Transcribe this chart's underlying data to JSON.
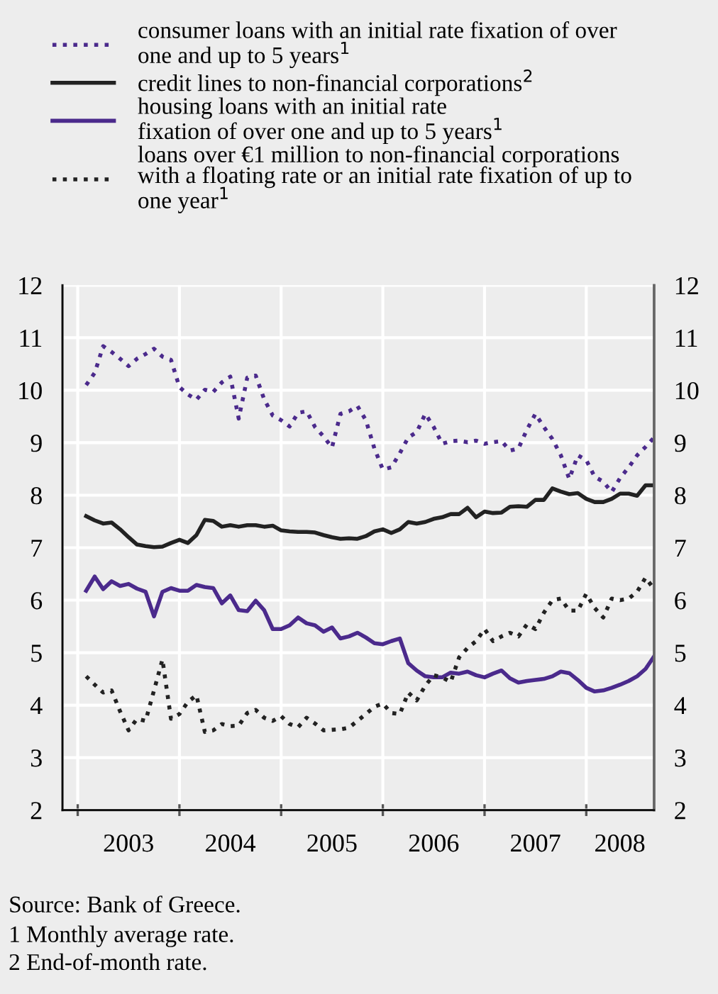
{
  "chart_data": {
    "type": "line",
    "x": [
      2003.083,
      2003.167,
      2003.25,
      2003.333,
      2003.417,
      2003.5,
      2003.583,
      2003.667,
      2003.75,
      2003.833,
      2003.917,
      2004.0,
      2004.083,
      2004.167,
      2004.25,
      2004.333,
      2004.417,
      2004.5,
      2004.583,
      2004.667,
      2004.75,
      2004.833,
      2004.917,
      2005.0,
      2005.083,
      2005.167,
      2005.25,
      2005.333,
      2005.417,
      2005.5,
      2005.583,
      2005.667,
      2005.75,
      2005.833,
      2005.917,
      2006.0,
      2006.083,
      2006.167,
      2006.25,
      2006.333,
      2006.417,
      2006.5,
      2006.583,
      2006.667,
      2006.75,
      2006.833,
      2006.917,
      2007.0,
      2007.083,
      2007.167,
      2007.25,
      2007.333,
      2007.417,
      2007.5,
      2007.583,
      2007.667,
      2007.75,
      2007.833,
      2007.917,
      2008.0,
      2008.083,
      2008.167,
      2008.25,
      2008.333,
      2008.417,
      2008.5,
      2008.583,
      2008.667
    ],
    "series": [
      {
        "name": "consumer loans with an initial rate fixation of over\none and up to 5 years$^{1}$",
        "color": "#4b2a8c",
        "line_style": "dotted",
        "values": [
          10.1,
          10.33,
          10.84,
          10.73,
          10.6,
          10.46,
          10.6,
          10.69,
          10.79,
          10.64,
          10.58,
          10.06,
          9.92,
          9.82,
          10.01,
          9.97,
          10.15,
          10.26,
          9.46,
          10.24,
          10.28,
          9.83,
          9.52,
          9.43,
          9.31,
          9.57,
          9.6,
          9.3,
          9.12,
          8.91,
          9.55,
          9.6,
          9.7,
          9.43,
          8.89,
          8.49,
          8.53,
          8.8,
          9.1,
          9.2,
          9.55,
          9.3,
          8.98,
          9.03,
          9.04,
          9.01,
          9.04,
          8.98,
          9.01,
          9.03,
          8.85,
          8.89,
          9.25,
          9.55,
          9.3,
          9.07,
          8.76,
          8.31,
          8.76,
          8.67,
          8.35,
          8.26,
          8.06,
          8.33,
          8.53,
          8.76,
          8.92,
          9.1
        ]
      },
      {
        "name": "credit lines to non-financial corporations$^{2}$",
        "color": "#222222",
        "line_style": "solid",
        "values": [
          7.6,
          7.52,
          7.46,
          7.48,
          7.35,
          7.2,
          7.06,
          7.03,
          7.01,
          7.02,
          7.09,
          7.15,
          7.09,
          7.24,
          7.53,
          7.51,
          7.4,
          7.43,
          7.4,
          7.43,
          7.43,
          7.4,
          7.42,
          7.33,
          7.31,
          7.3,
          7.3,
          7.29,
          7.24,
          7.2,
          7.17,
          7.18,
          7.17,
          7.22,
          7.31,
          7.35,
          7.28,
          7.35,
          7.49,
          7.46,
          7.49,
          7.55,
          7.58,
          7.64,
          7.64,
          7.76,
          7.58,
          7.69,
          7.66,
          7.67,
          7.78,
          7.79,
          7.78,
          7.91,
          7.91,
          8.13,
          8.07,
          8.02,
          8.04,
          7.93,
          7.87,
          7.87,
          7.93,
          8.03,
          8.03,
          7.99,
          8.19,
          8.19
        ]
      },
      {
        "name": "housing loans with an initial rate\nfixation of over one and up to 5 years$^{1}$",
        "color": "#4b2a8c",
        "line_style": "solid",
        "values": [
          6.18,
          6.45,
          6.21,
          6.36,
          6.27,
          6.31,
          6.22,
          6.16,
          5.69,
          6.16,
          6.23,
          6.18,
          6.18,
          6.29,
          6.25,
          6.23,
          5.94,
          6.09,
          5.81,
          5.79,
          5.99,
          5.81,
          5.45,
          5.45,
          5.52,
          5.67,
          5.56,
          5.52,
          5.4,
          5.48,
          5.27,
          5.31,
          5.38,
          5.29,
          5.18,
          5.16,
          5.22,
          5.27,
          4.8,
          4.66,
          4.55,
          4.53,
          4.53,
          4.62,
          4.6,
          4.64,
          4.57,
          4.53,
          4.6,
          4.66,
          4.51,
          4.43,
          4.46,
          4.48,
          4.5,
          4.55,
          4.64,
          4.61,
          4.48,
          4.33,
          4.26,
          4.28,
          4.33,
          4.39,
          4.46,
          4.55,
          4.69,
          4.93
        ]
      },
      {
        "name": "loans over €1 million to non-financial corporations\nwith a floating rate or an initial rate fixation of up to\none year$^{1}$",
        "color": "#222222",
        "line_style": "dotted",
        "values": [
          4.55,
          4.39,
          4.24,
          4.28,
          3.88,
          3.52,
          3.74,
          3.7,
          4.28,
          4.87,
          3.74,
          3.83,
          4.06,
          4.19,
          3.49,
          3.52,
          3.64,
          3.6,
          3.61,
          3.85,
          3.91,
          3.76,
          3.7,
          3.79,
          3.64,
          3.58,
          3.76,
          3.65,
          3.52,
          3.53,
          3.54,
          3.57,
          3.7,
          3.83,
          3.97,
          4.03,
          3.85,
          3.83,
          4.24,
          4.09,
          4.37,
          4.57,
          4.53,
          4.44,
          4.91,
          5.09,
          5.22,
          5.45,
          5.22,
          5.31,
          5.38,
          5.31,
          5.54,
          5.45,
          5.76,
          6.0,
          6.03,
          5.8,
          5.8,
          6.12,
          5.85,
          5.67,
          6.03,
          6.0,
          6.03,
          6.16,
          6.43,
          6.21
        ]
      }
    ],
    "xlim": [
      2002.85,
      2008.667
    ],
    "xticks": [
      {
        "value": 2003,
        "label": null
      },
      {
        "value": 2004,
        "label": null
      },
      {
        "value": 2005,
        "label": null
      },
      {
        "value": 2006,
        "label": null
      },
      {
        "value": 2007,
        "label": null
      },
      {
        "value": 2008,
        "label": null
      },
      {
        "value": 2003.5,
        "label": "2003"
      },
      {
        "value": 2004.5,
        "label": "2004"
      },
      {
        "value": 2005.5,
        "label": "2005"
      },
      {
        "value": 2006.5,
        "label": "2006"
      },
      {
        "value": 2007.5,
        "label": "2007"
      },
      {
        "value": 2008.33,
        "label": "2008"
      }
    ],
    "ylim": [
      2,
      12
    ],
    "yticks": [
      2,
      3,
      4,
      5,
      6,
      7,
      8,
      9,
      10,
      11,
      12
    ],
    "y2lim": [
      2,
      12
    ],
    "y2ticks": [
      2,
      3,
      4,
      5,
      6,
      7,
      8,
      9,
      10,
      11,
      12
    ],
    "grid": true,
    "legend": "top",
    "marker": "none",
    "annotations": [
      "Source: Bank of Greece.",
      "1 Monthly average rate.",
      "2 End-of-month rate."
    ]
  }
}
